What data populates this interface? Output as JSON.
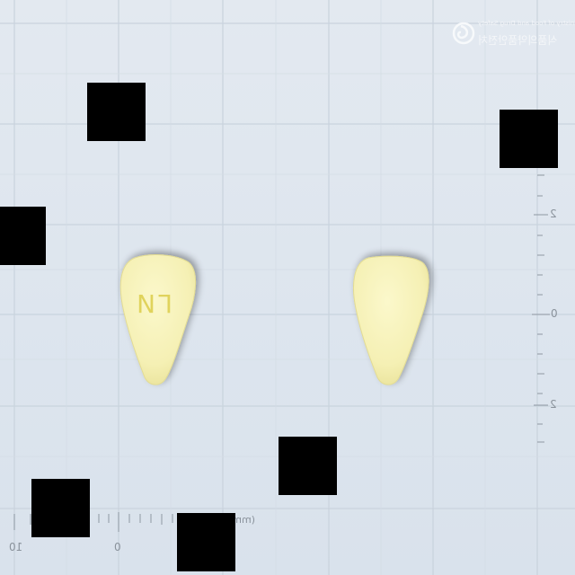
{
  "photo": {
    "subject": "two pale yellow triangular tablets",
    "background_color": "#dfe7ef",
    "grid_color": "#c7d2dc",
    "tablet_color": "#f6f2b6",
    "imprint_color": "#e2d55f"
  },
  "watermark": {
    "logo_icon": "mfds-swirl-logo-icon",
    "line1": "Ministry of Food and Drug Safety",
    "line2": "식품의약품안전처"
  },
  "ruler": {
    "right_labels": [
      "2",
      "0",
      "2"
    ],
    "bottom_labels": [
      "10",
      "0"
    ],
    "unit": "(mm)"
  },
  "tablets": [
    {
      "name": "tablet-front",
      "imprint": "ГИ"
    },
    {
      "name": "tablet-back",
      "imprint": ""
    }
  ],
  "redactions": {
    "color": "#000000",
    "count": 7
  }
}
